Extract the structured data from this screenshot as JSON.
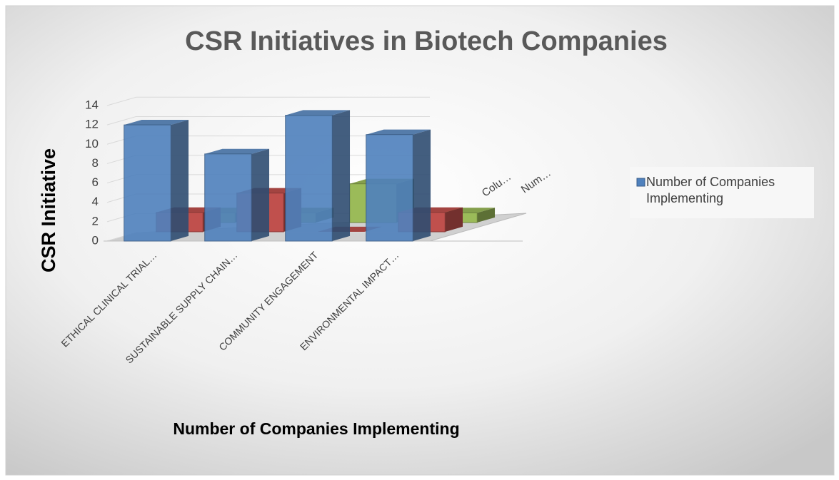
{
  "chart_data": {
    "type": "bar3d",
    "title": "CSR Initiatives in Biotech Companies",
    "y_label": "CSR Initiative",
    "x_label": "Number of Companies Implementing",
    "categories": [
      "ETHICAL CLINICAL TRIAL…",
      "SUSTAINABLE SUPPLY CHAIN…",
      "COMMUNITY ENGAGEMENT",
      "ENVIRONMENTAL IMPACT…"
    ],
    "series": [
      {
        "name": "Number of Companies Implementing",
        "color": "#4f81bd",
        "values": [
          12,
          9,
          13,
          11
        ]
      },
      {
        "name": "Colu…",
        "color": "#c0504d",
        "values": [
          2,
          4,
          0,
          2
        ]
      },
      {
        "name": "Num…",
        "color": "#9bbb59",
        "values": [
          1,
          1,
          4,
          1
        ]
      }
    ],
    "ylim": [
      0,
      14
    ],
    "yticks": [
      0,
      2,
      4,
      6,
      8,
      10,
      12,
      14
    ],
    "grid": true,
    "legend": "right"
  }
}
